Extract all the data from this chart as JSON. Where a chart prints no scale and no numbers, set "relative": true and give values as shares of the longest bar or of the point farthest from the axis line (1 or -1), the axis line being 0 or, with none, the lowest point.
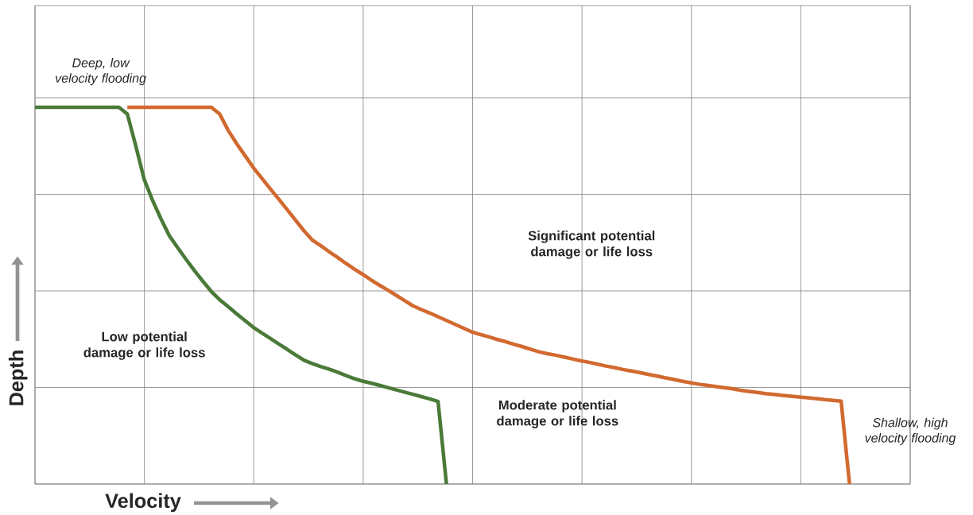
{
  "chart_data": {
    "type": "line",
    "relative": true,
    "xlabel": "Velocity",
    "ylabel": "Depth",
    "categories": [
      null,
      null,
      null,
      null,
      null,
      null,
      null,
      null,
      null,
      null,
      null,
      null,
      null,
      null,
      null,
      null,
      null,
      null,
      null,
      null,
      null,
      null,
      null,
      null,
      null,
      null,
      null,
      null,
      null,
      null,
      null,
      null,
      null,
      null,
      null,
      null,
      null,
      null,
      null,
      null,
      null,
      null,
      null,
      null,
      null,
      null,
      null,
      null,
      null,
      null,
      null,
      null,
      null,
      null,
      null,
      null,
      null,
      null,
      null,
      null,
      null,
      null,
      null,
      null,
      null,
      null,
      null,
      null,
      null,
      null,
      null,
      null,
      null,
      null,
      null,
      null,
      null,
      null,
      null,
      null,
      null,
      null,
      null,
      null,
      null,
      null,
      null,
      null,
      null,
      null,
      null,
      null,
      null,
      null,
      null,
      null,
      null,
      null,
      null,
      null,
      null,
      null,
      null,
      null,
      null
    ],
    "grid": true,
    "series": [
      {
        "color": "#d2692f",
        "values": [
          null,
          null,
          null,
          null,
          null,
          null,
          null,
          null,
          null,
          null,
          null,
          1,
          1,
          1,
          1,
          1,
          1,
          1,
          1,
          1,
          1,
          1,
          0.982,
          0.939,
          0.904,
          0.872,
          0.84,
          0.812,
          0.784,
          0.757,
          0.729,
          0.701,
          0.673,
          0.648,
          0.633,
          0.617,
          0.602,
          0.586,
          0.571,
          0.557,
          0.542,
          0.528,
          0.515,
          0.501,
          0.487,
          0.473,
          0.463,
          0.454,
          0.444,
          0.434,
          0.424,
          0.414,
          0.404,
          0.397,
          0.391,
          0.384,
          0.378,
          0.371,
          0.365,
          0.358,
          0.351,
          0.346,
          0.342,
          0.337,
          0.332,
          0.327,
          0.323,
          0.318,
          0.313,
          0.309,
          0.304,
          0.3,
          0.296,
          0.291,
          0.287,
          0.282,
          0.278,
          0.273,
          0.269,
          0.265,
          0.262,
          0.259,
          0.256,
          0.253,
          0.249,
          0.246,
          0.243,
          0.24,
          0.238,
          0.235,
          0.233,
          0.231,
          0.229,
          0.227,
          0.224,
          0.222,
          0.22,
          0,
          null,
          null,
          null,
          null,
          null,
          null,
          null
        ]
      },
      {
        "color": "#4a7a38",
        "values": [
          1,
          1,
          1,
          1,
          1,
          1,
          1,
          1,
          1,
          1,
          1,
          0.982,
          0.898,
          0.809,
          0.753,
          0.704,
          0.659,
          0.627,
          0.596,
          0.566,
          0.538,
          0.511,
          0.489,
          0.471,
          0.452,
          0.434,
          0.416,
          0.401,
          0.387,
          0.372,
          0.358,
          0.343,
          0.329,
          0.32,
          0.312,
          0.305,
          0.297,
          0.288,
          0.28,
          0.273,
          0.268,
          0.262,
          0.256,
          0.25,
          0.244,
          0.238,
          0.232,
          0.226,
          0.219,
          0,
          null,
          null,
          null,
          null,
          null,
          null,
          null,
          null,
          null,
          null,
          null,
          null,
          null,
          null,
          null,
          null,
          null,
          null,
          null,
          null,
          null,
          null,
          null,
          null,
          null,
          null,
          null,
          null,
          null,
          null,
          null,
          null,
          null,
          null,
          null,
          null,
          null,
          null,
          null,
          null,
          null,
          null,
          null,
          null,
          null,
          null,
          null,
          null,
          null,
          null,
          null,
          null,
          null,
          null,
          null
        ]
      }
    ],
    "annotations": [
      "Deep, low velocity flooding",
      "Significant potential damage or life loss",
      "Low potential damage or life loss",
      "Moderate potential damage or life loss",
      "Shallow, high velocity flooding"
    ]
  }
}
